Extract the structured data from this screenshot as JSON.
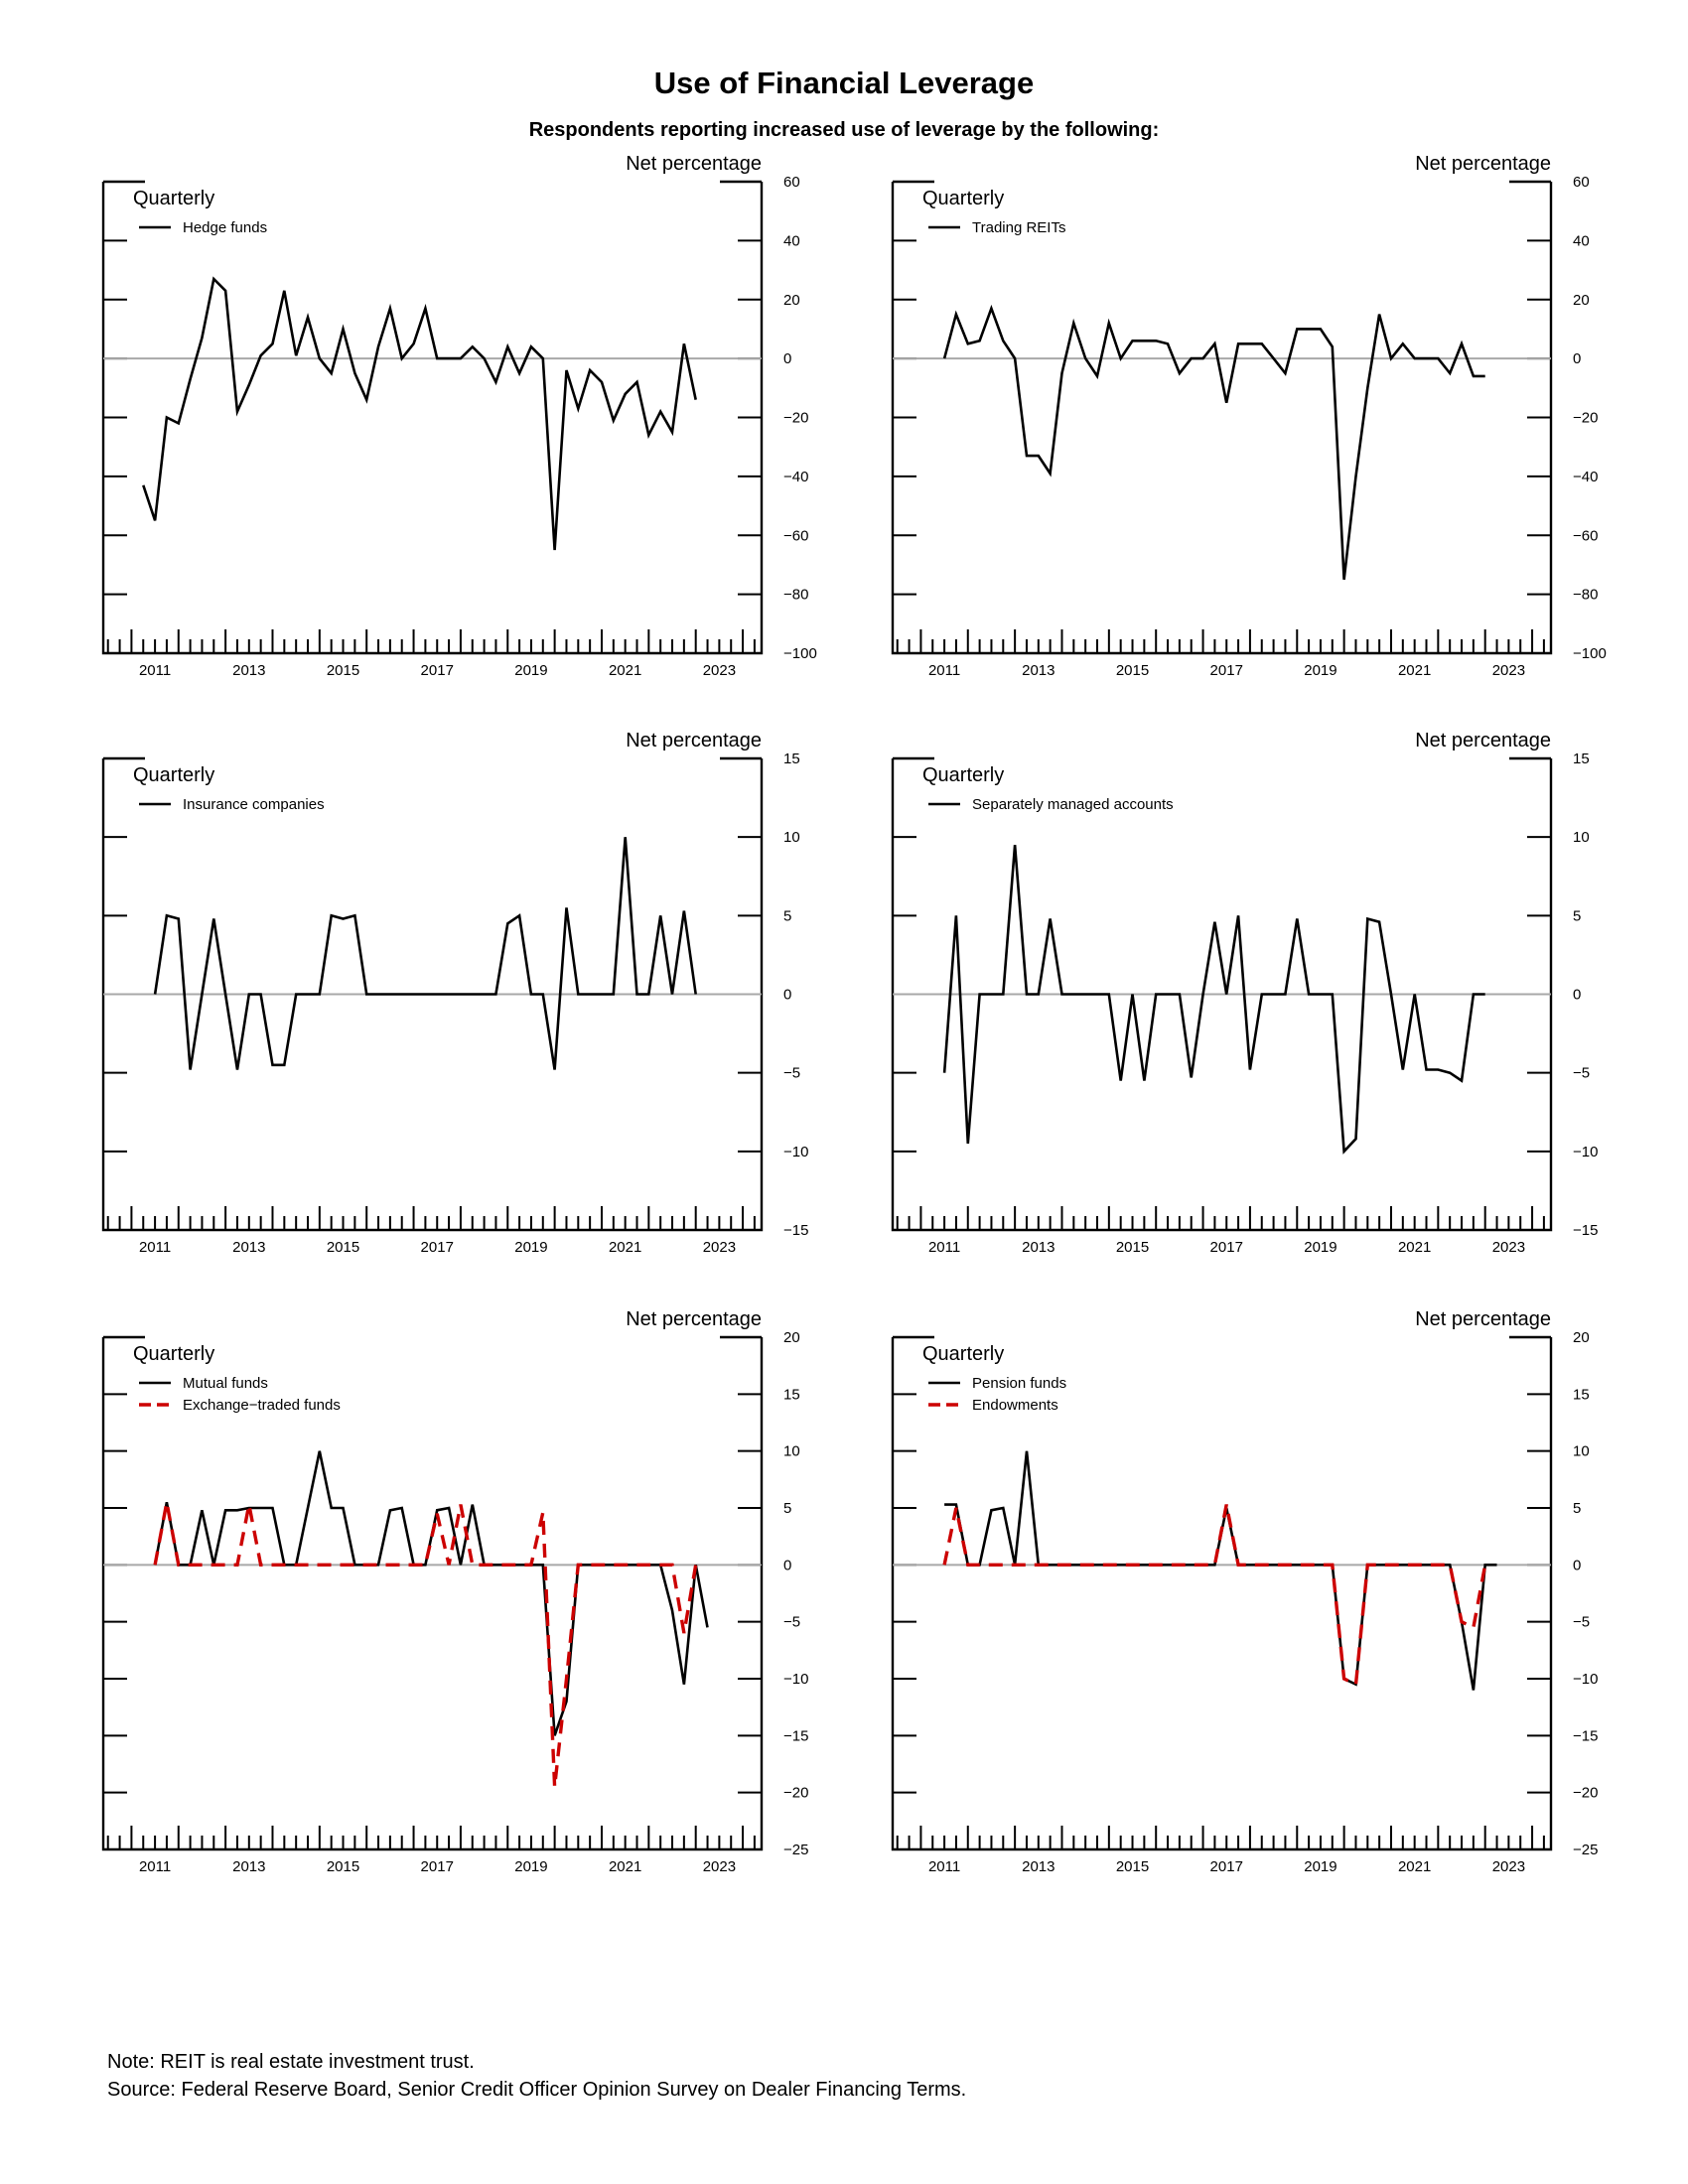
{
  "page": {
    "title": "Use of Financial Leverage",
    "subtitle": "Respondents reporting increased use of leverage by the following:"
  },
  "footnotes": {
    "note": "Note:  REIT is real estate investment trust.",
    "source": "Source:  Federal Reserve Board, Senior Credit Officer Opinion Survey on Dealer Financing Terms."
  },
  "chart_data": [
    {
      "type": "line",
      "frequency_label": "Quarterly",
      "ylabel": "Net percentage",
      "ylim": [
        -100,
        60
      ],
      "yticks": [
        60,
        40,
        20,
        0,
        -20,
        -40,
        -60,
        -80,
        -100
      ],
      "xlim": [
        2010.4,
        2024.4
      ],
      "xticks": [
        "2011",
        "2013",
        "2015",
        "2017",
        "2019",
        "2021",
        "2023"
      ],
      "x_start": 2011.25,
      "zero_line": true,
      "legend_position": "top-left",
      "series": [
        {
          "name": "Hedge funds",
          "color": "#000000",
          "dashed": false,
          "values": [
            -43,
            -55,
            -20,
            -22,
            -7,
            7,
            27,
            23,
            -18,
            -9,
            1,
            5,
            23,
            1,
            14,
            0,
            -5,
            10,
            -5,
            -14,
            4,
            17,
            0,
            5,
            17,
            0,
            0,
            0,
            4,
            0,
            -8,
            4,
            -5,
            4,
            0,
            -65,
            -4,
            -17,
            -4,
            -8,
            -21,
            -12,
            -8,
            -26,
            -18,
            -25,
            5,
            -14
          ]
        }
      ]
    },
    {
      "type": "line",
      "frequency_label": "Quarterly",
      "ylabel": "Net percentage",
      "ylim": [
        -100,
        60
      ],
      "yticks": [
        60,
        40,
        20,
        0,
        -20,
        -40,
        -60,
        -80,
        -100
      ],
      "xlim": [
        2010.4,
        2024.4
      ],
      "xticks": [
        "2011",
        "2013",
        "2015",
        "2017",
        "2019",
        "2021",
        "2023"
      ],
      "x_start": 2011.5,
      "zero_line": true,
      "legend_position": "top-left",
      "series": [
        {
          "name": "Trading REITs",
          "color": "#000000",
          "dashed": false,
          "values": [
            0,
            15,
            5,
            6,
            17,
            6,
            0,
            -33,
            -33,
            -39,
            -5,
            12,
            0,
            -6,
            12,
            0,
            6,
            6,
            6,
            5,
            -5,
            0,
            0,
            5,
            -15,
            5,
            5,
            5,
            0,
            -5,
            10,
            10,
            10,
            4,
            -75,
            -40,
            -10,
            15,
            0,
            5,
            0,
            0,
            0,
            -5,
            5,
            -6,
            -6
          ]
        }
      ]
    },
    {
      "type": "line",
      "frequency_label": "Quarterly",
      "ylabel": "Net percentage",
      "ylim": [
        -15,
        15
      ],
      "yticks": [
        15,
        10,
        5,
        0,
        -5,
        -10,
        -15
      ],
      "xlim": [
        2010.4,
        2024.4
      ],
      "xticks": [
        "2011",
        "2013",
        "2015",
        "2017",
        "2019",
        "2021",
        "2023"
      ],
      "x_start": 2011.5,
      "zero_line": true,
      "legend_position": "top-left",
      "series": [
        {
          "name": "Insurance companies",
          "color": "#000000",
          "dashed": false,
          "values": [
            0,
            5,
            4.8,
            -4.8,
            0,
            4.8,
            0,
            -4.8,
            0,
            0,
            -4.5,
            -4.5,
            0,
            0,
            0,
            5,
            4.8,
            5,
            0,
            0,
            0,
            0,
            0,
            0,
            0,
            0,
            0,
            0,
            0,
            0,
            4.5,
            5,
            0,
            0,
            -4.8,
            5.5,
            0,
            0,
            0,
            0,
            10,
            0,
            0,
            5,
            0,
            5.3,
            0
          ]
        }
      ]
    },
    {
      "type": "line",
      "frequency_label": "Quarterly",
      "ylabel": "Net percentage",
      "ylim": [
        -15,
        15
      ],
      "yticks": [
        15,
        10,
        5,
        0,
        -5,
        -10,
        -15
      ],
      "xlim": [
        2010.4,
        2024.4
      ],
      "xticks": [
        "2011",
        "2013",
        "2015",
        "2017",
        "2019",
        "2021",
        "2023"
      ],
      "x_start": 2011.5,
      "zero_line": true,
      "legend_position": "top-left",
      "series": [
        {
          "name": "Separately managed accounts",
          "color": "#000000",
          "dashed": false,
          "values": [
            -5,
            5,
            -9.5,
            0,
            0,
            0,
            9.5,
            0,
            0,
            4.8,
            0,
            0,
            0,
            0,
            0,
            -5.5,
            0,
            -5.5,
            0,
            0,
            0,
            -5.3,
            0,
            4.6,
            0,
            5,
            -4.8,
            0,
            0,
            0,
            4.8,
            0,
            0,
            0,
            -10,
            -9.2,
            4.8,
            4.6,
            0,
            -4.8,
            0,
            -4.8,
            -4.8,
            -5,
            -5.5,
            0,
            0
          ]
        }
      ]
    },
    {
      "type": "line",
      "frequency_label": "Quarterly",
      "ylabel": "Net percentage",
      "ylim": [
        -25,
        20
      ],
      "yticks": [
        20,
        15,
        10,
        5,
        0,
        -5,
        -10,
        -15,
        -20,
        -25
      ],
      "xlim": [
        2010.4,
        2024.4
      ],
      "xticks": [
        "2011",
        "2013",
        "2015",
        "2017",
        "2019",
        "2021",
        "2023"
      ],
      "x_start": 2011.5,
      "zero_line": true,
      "legend_position": "top-left",
      "series": [
        {
          "name": "Mutual funds",
          "color": "#000000",
          "dashed": false,
          "values": [
            0,
            5.5,
            0,
            0,
            4.8,
            0,
            4.8,
            4.8,
            5,
            5,
            5,
            0,
            0,
            5,
            10,
            5,
            5,
            0,
            0,
            0,
            4.8,
            5,
            0,
            0,
            4.8,
            5,
            0,
            5.3,
            0,
            0,
            0,
            0,
            0,
            0,
            -15,
            -12,
            0,
            0,
            0,
            0,
            0,
            0,
            0,
            0,
            -4,
            -10.5,
            0,
            -5.5
          ]
        },
        {
          "name": "Exchange−traded funds",
          "color": "#cc0000",
          "dashed": true,
          "values": [
            0,
            5.5,
            0,
            0,
            0,
            0,
            0,
            0,
            5.3,
            0,
            0,
            0,
            0,
            0,
            0,
            0,
            0,
            0,
            0,
            0,
            0,
            0,
            0,
            0,
            4.5,
            0,
            5.3,
            0,
            0,
            0,
            0,
            0,
            0,
            4.6,
            -19.5,
            -10,
            0,
            0,
            0,
            0,
            0,
            0,
            0,
            0,
            0,
            -6,
            0
          ]
        }
      ]
    },
    {
      "type": "line",
      "frequency_label": "Quarterly",
      "ylabel": "Net percentage",
      "ylim": [
        -25,
        20
      ],
      "yticks": [
        20,
        15,
        10,
        5,
        0,
        -5,
        -10,
        -15,
        -20,
        -25
      ],
      "xlim": [
        2010.4,
        2024.4
      ],
      "xticks": [
        "2011",
        "2013",
        "2015",
        "2017",
        "2019",
        "2021",
        "2023"
      ],
      "x_start": 2011.5,
      "zero_line": true,
      "legend_position": "top-left",
      "series": [
        {
          "name": "Pension funds",
          "color": "#000000",
          "dashed": false,
          "values": [
            5.3,
            5.3,
            0,
            0,
            4.8,
            5,
            0,
            10,
            0,
            0,
            0,
            0,
            0,
            0,
            0,
            0,
            0,
            0,
            0,
            0,
            0,
            0,
            0,
            0,
            5,
            0,
            0,
            0,
            0,
            0,
            0,
            0,
            0,
            0,
            -10,
            -10.5,
            0,
            0,
            0,
            0,
            0,
            0,
            0,
            0,
            -5,
            -11,
            0,
            0
          ]
        },
        {
          "name": "Endowments",
          "color": "#cc0000",
          "dashed": true,
          "values": [
            0,
            5,
            0,
            0,
            0,
            0,
            0,
            0,
            0,
            0,
            0,
            0,
            0,
            0,
            0,
            0,
            0,
            0,
            0,
            0,
            0,
            0,
            0,
            0,
            5.3,
            0,
            0,
            0,
            0,
            0,
            0,
            0,
            0,
            0,
            -10,
            -10.5,
            0,
            0,
            0,
            0,
            0,
            0,
            0,
            0,
            -5,
            -5.5,
            0
          ]
        }
      ]
    }
  ]
}
